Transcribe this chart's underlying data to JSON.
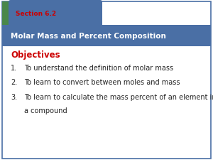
{
  "section_label": "Section 6.2",
  "title": "Molar Mass and Percent Composition",
  "objectives_label": "Objectives",
  "items": [
    "To understand the definition of molar mass",
    "To learn to convert between moles and mass",
    "To learn to calculate the mass percent of an element in\na compound"
  ],
  "header_bg_color": "#4a6fa5",
  "section_tab_bg": "#4a874a",
  "section_tab_text_color": "#cc0000",
  "title_text_color": "#ffffff",
  "objectives_color": "#cc0000",
  "body_text_color": "#222222",
  "bg_color": "#ffffff",
  "border_color": "#4a6fa5",
  "tab_top_row_bg": "#4a6fa5",
  "section_text_bg": "#4a874a"
}
